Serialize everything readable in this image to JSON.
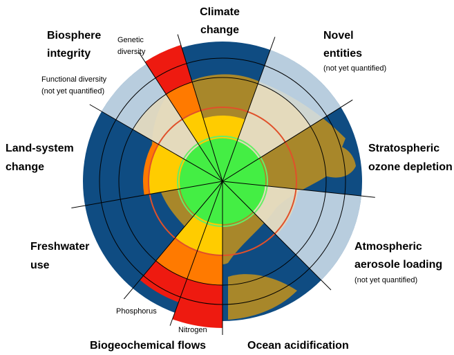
{
  "diagram": {
    "labels": {
      "climate_change": [
        "Climate",
        "change"
      ],
      "biosphere_integrity": [
        "Biosphere",
        "integrity"
      ],
      "genetic_diversity": [
        "Genetic",
        "diversity"
      ],
      "functional_diversity": [
        "Functional diversity",
        "(not yet quantified)"
      ],
      "novel_entities": [
        "Novel",
        "entities"
      ],
      "novel_entities_note": "(not yet quantified)",
      "ozone": [
        "Stratospheric",
        "ozone depletion"
      ],
      "land_system": [
        "Land-system",
        "change"
      ],
      "freshwater": [
        "Freshwater",
        "use"
      ],
      "aerosol": [
        "Atmospheric",
        "aerosole loading"
      ],
      "aerosol_note": "(not yet quantified)",
      "phosphorus": "Phosphorus",
      "nitrogen": "Nitrogen",
      "biogeochemical": "Biogeochemical flows",
      "ocean": "Ocean acidification"
    }
  }
}
